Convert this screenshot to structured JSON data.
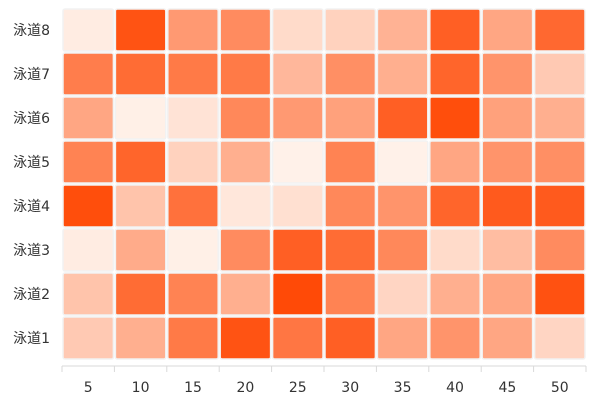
{
  "chart_data": {
    "type": "heatmap",
    "title": "",
    "xlabel": "",
    "ylabel": "",
    "x": [
      "5",
      "10",
      "15",
      "20",
      "25",
      "30",
      "35",
      "40",
      "45",
      "50"
    ],
    "y": [
      "泳道1",
      "泳道2",
      "泳道3",
      "泳道4",
      "泳道5",
      "泳道6",
      "泳道7",
      "泳道8"
    ],
    "value_range": [
      0,
      1
    ],
    "color_min": "#fff5ee",
    "color_max": "#ff4500",
    "values": [
      [
        0.25,
        0.4,
        0.7,
        0.92,
        0.72,
        0.85,
        0.45,
        0.55,
        0.45,
        0.18
      ],
      [
        0.28,
        0.78,
        0.65,
        0.4,
        0.97,
        0.65,
        0.18,
        0.4,
        0.45,
        0.93
      ],
      [
        0.05,
        0.42,
        0.03,
        0.6,
        0.85,
        0.78,
        0.62,
        0.15,
        0.32,
        0.6
      ],
      [
        0.95,
        0.28,
        0.75,
        0.08,
        0.12,
        0.62,
        0.55,
        0.82,
        0.88,
        0.88
      ],
      [
        0.65,
        0.82,
        0.2,
        0.4,
        0.02,
        0.65,
        0.02,
        0.45,
        0.55,
        0.58
      ],
      [
        0.45,
        0.03,
        0.1,
        0.62,
        0.52,
        0.48,
        0.85,
        0.95,
        0.48,
        0.4
      ],
      [
        0.68,
        0.78,
        0.7,
        0.7,
        0.35,
        0.58,
        0.4,
        0.82,
        0.55,
        0.25
      ],
      [
        0.05,
        0.92,
        0.52,
        0.6,
        0.15,
        0.2,
        0.38,
        0.85,
        0.45,
        0.8
      ]
    ],
    "grid": false,
    "legend": "none"
  }
}
